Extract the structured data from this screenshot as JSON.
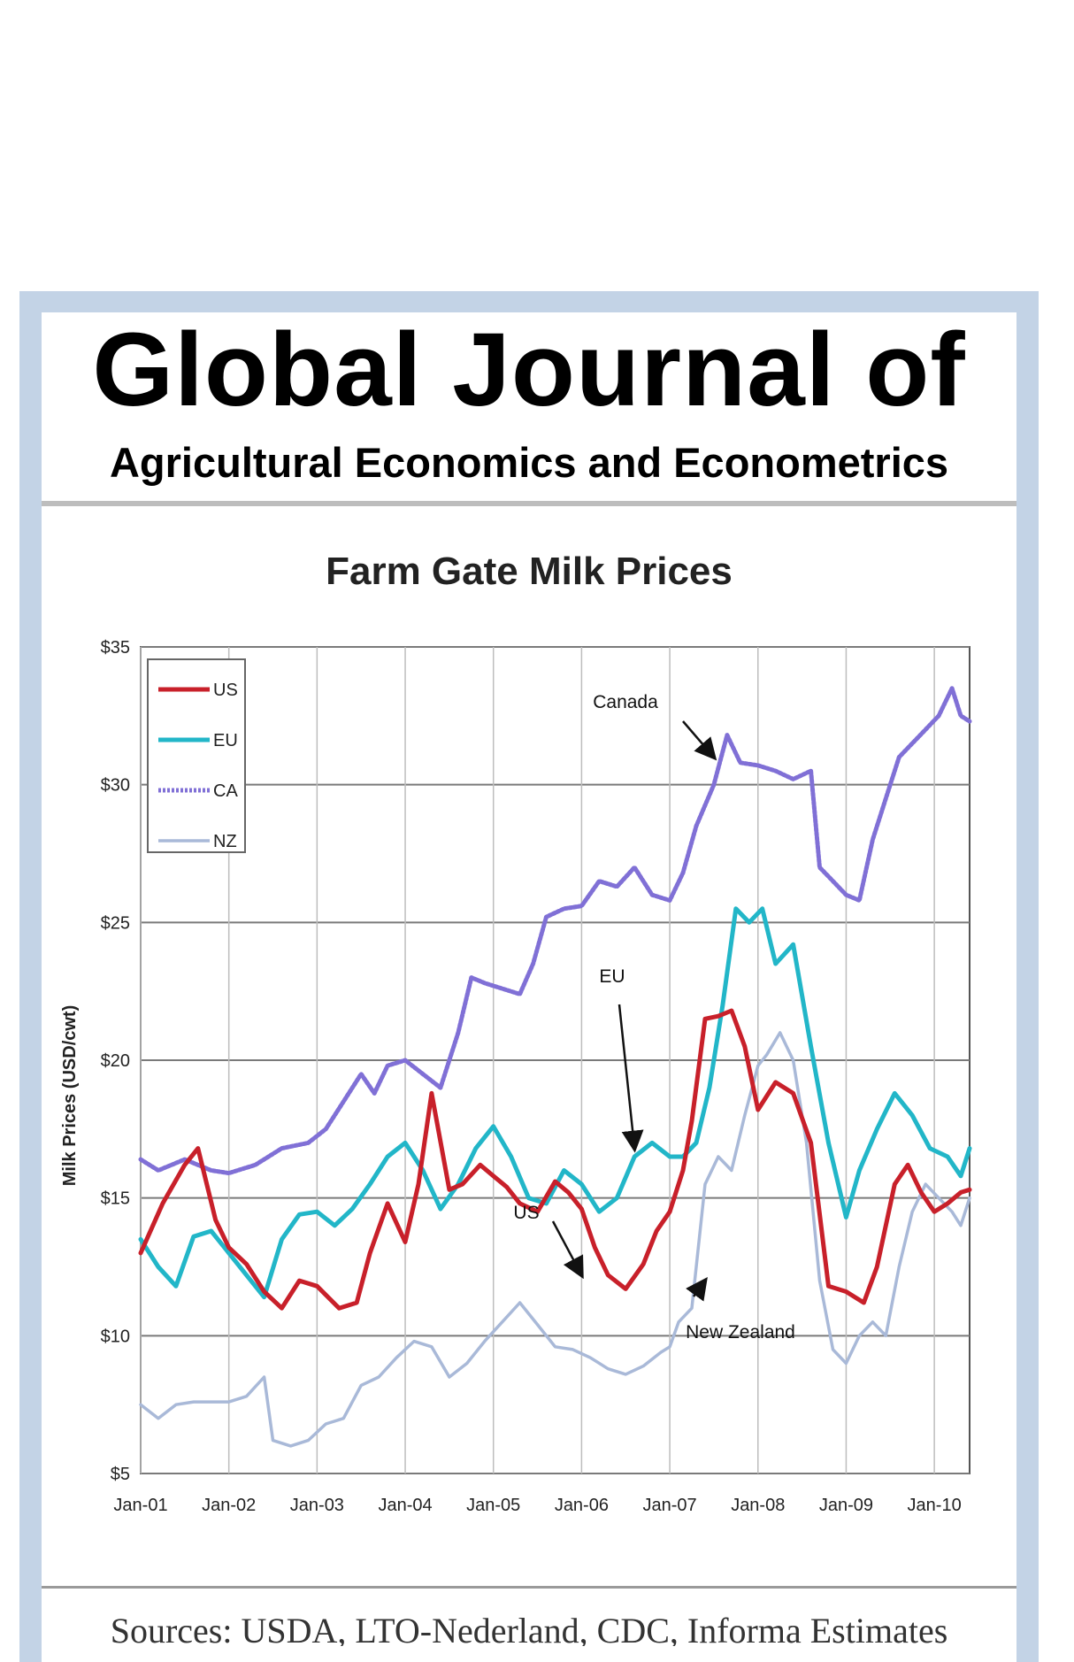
{
  "journal": {
    "title_line1": "Global Journal of",
    "title_line2": "Agricultural Economics and Econometrics"
  },
  "footer": {
    "sources": "Sources: USDA, LTO-Nederland, CDC, Informa Estimates"
  },
  "colors": {
    "frame": "#c3d3e6",
    "US": "#c8202a",
    "EU": "#22b6c8",
    "CA": "#8070d6",
    "NZ": "#a9b9d8"
  },
  "chart_data": {
    "type": "line",
    "title": "Farm Gate Milk Prices",
    "ylabel": "Milk Prices (USD/cwt)",
    "xlabel": "",
    "ylim": [
      5,
      35
    ],
    "xlim": [
      2001.0,
      2010.4
    ],
    "yticks": [
      5,
      10,
      15,
      20,
      25,
      30,
      35
    ],
    "ytick_labels": [
      "$5",
      "$10",
      "$15",
      "$20",
      "$25",
      "$30",
      "$35"
    ],
    "xticks": [
      2001,
      2002,
      2003,
      2004,
      2005,
      2006,
      2007,
      2008,
      2009,
      2010
    ],
    "xtick_labels": [
      "Jan-01",
      "Jan-02",
      "Jan-03",
      "Jan-04",
      "Jan-05",
      "Jan-06",
      "Jan-07",
      "Jan-08",
      "Jan-09",
      "Jan-10"
    ],
    "grid": true,
    "legend_position": "top-left",
    "series": [
      {
        "name": "US",
        "style": "solid",
        "x": [
          2001.0,
          2001.25,
          2001.5,
          2001.65,
          2001.85,
          2002.0,
          2002.2,
          2002.4,
          2002.6,
          2002.8,
          2003.0,
          2003.25,
          2003.45,
          2003.6,
          2003.8,
          2004.0,
          2004.15,
          2004.3,
          2004.5,
          2004.65,
          2004.85,
          2005.0,
          2005.15,
          2005.3,
          2005.5,
          2005.7,
          2005.85,
          2006.0,
          2006.15,
          2006.3,
          2006.5,
          2006.7,
          2006.85,
          2007.0,
          2007.15,
          2007.25,
          2007.4,
          2007.55,
          2007.7,
          2007.85,
          2008.0,
          2008.2,
          2008.4,
          2008.6,
          2008.8,
          2009.0,
          2009.2,
          2009.35,
          2009.55,
          2009.7,
          2009.85,
          2010.0,
          2010.15,
          2010.3,
          2010.4
        ],
        "values": [
          13.0,
          14.8,
          16.2,
          16.8,
          14.2,
          13.2,
          12.6,
          11.6,
          11.0,
          12.0,
          11.8,
          11.0,
          11.2,
          13.0,
          14.8,
          13.4,
          15.5,
          18.8,
          15.3,
          15.5,
          16.2,
          15.8,
          15.4,
          14.8,
          14.5,
          15.6,
          15.2,
          14.6,
          13.2,
          12.2,
          11.7,
          12.6,
          13.8,
          14.5,
          16.0,
          17.8,
          21.5,
          21.6,
          21.8,
          20.5,
          18.2,
          19.2,
          18.8,
          17.0,
          11.8,
          11.6,
          11.2,
          12.5,
          15.5,
          16.2,
          15.2,
          14.5,
          14.8,
          15.2,
          15.3
        ]
      },
      {
        "name": "EU",
        "style": "solid",
        "x": [
          2001.0,
          2001.2,
          2001.4,
          2001.6,
          2001.8,
          2002.0,
          2002.2,
          2002.4,
          2002.6,
          2002.8,
          2003.0,
          2003.2,
          2003.4,
          2003.6,
          2003.8,
          2004.0,
          2004.2,
          2004.4,
          2004.6,
          2004.8,
          2005.0,
          2005.2,
          2005.4,
          2005.6,
          2005.8,
          2006.0,
          2006.2,
          2006.4,
          2006.6,
          2006.8,
          2007.0,
          2007.15,
          2007.3,
          2007.45,
          2007.6,
          2007.75,
          2007.9,
          2008.05,
          2008.2,
          2008.4,
          2008.6,
          2008.8,
          2009.0,
          2009.15,
          2009.35,
          2009.55,
          2009.75,
          2009.95,
          2010.15,
          2010.3,
          2010.4
        ],
        "values": [
          13.5,
          12.5,
          11.8,
          13.6,
          13.8,
          13.0,
          12.2,
          11.4,
          13.5,
          14.4,
          14.5,
          14.0,
          14.6,
          15.5,
          16.5,
          17.0,
          16.0,
          14.6,
          15.5,
          16.8,
          17.6,
          16.5,
          15.0,
          14.8,
          16.0,
          15.5,
          14.5,
          15.0,
          16.5,
          17.0,
          16.5,
          16.5,
          17.0,
          19.0,
          22.0,
          25.5,
          25.0,
          25.5,
          23.5,
          24.2,
          20.5,
          17.0,
          14.3,
          16.0,
          17.5,
          18.8,
          18.0,
          16.8,
          16.5,
          15.8,
          16.8
        ]
      },
      {
        "name": "CA",
        "style": "dotted",
        "x": [
          2001.0,
          2001.2,
          2001.5,
          2001.8,
          2002.0,
          2002.3,
          2002.6,
          2002.9,
          2003.1,
          2003.3,
          2003.5,
          2003.65,
          2003.8,
          2004.0,
          2004.2,
          2004.4,
          2004.6,
          2004.75,
          2004.9,
          2005.1,
          2005.3,
          2005.45,
          2005.6,
          2005.8,
          2006.0,
          2006.2,
          2006.4,
          2006.6,
          2006.8,
          2007.0,
          2007.15,
          2007.3,
          2007.5,
          2007.65,
          2007.8,
          2008.0,
          2008.2,
          2008.4,
          2008.6,
          2008.7,
          2008.85,
          2009.0,
          2009.15,
          2009.3,
          2009.45,
          2009.6,
          2009.75,
          2009.9,
          2010.05,
          2010.2,
          2010.3,
          2010.4
        ],
        "values": [
          16.4,
          16.0,
          16.4,
          16.0,
          15.9,
          16.2,
          16.8,
          17.0,
          17.5,
          18.5,
          19.5,
          18.8,
          19.8,
          20.0,
          19.5,
          19.0,
          21.0,
          23.0,
          22.8,
          22.6,
          22.4,
          23.5,
          25.2,
          25.5,
          25.6,
          26.5,
          26.3,
          27.0,
          26.0,
          25.8,
          26.8,
          28.5,
          30.0,
          31.8,
          30.8,
          30.7,
          30.5,
          30.2,
          30.5,
          27.0,
          26.5,
          26.0,
          25.8,
          28.0,
          29.5,
          31.0,
          31.5,
          32.0,
          32.5,
          33.5,
          32.5,
          32.3
        ]
      },
      {
        "name": "NZ",
        "style": "solid",
        "x": [
          2001.0,
          2001.2,
          2001.4,
          2001.6,
          2001.8,
          2002.0,
          2002.2,
          2002.4,
          2002.5,
          2002.7,
          2002.9,
          2003.1,
          2003.3,
          2003.5,
          2003.7,
          2003.9,
          2004.1,
          2004.3,
          2004.5,
          2004.7,
          2004.9,
          2005.1,
          2005.3,
          2005.5,
          2005.7,
          2005.9,
          2006.1,
          2006.3,
          2006.5,
          2006.7,
          2006.9,
          2007.0,
          2007.1,
          2007.25,
          2007.4,
          2007.55,
          2007.7,
          2007.85,
          2008.0,
          2008.1,
          2008.25,
          2008.4,
          2008.55,
          2008.7,
          2008.85,
          2009.0,
          2009.15,
          2009.3,
          2009.45,
          2009.6,
          2009.75,
          2009.9,
          2010.05,
          2010.2,
          2010.3,
          2010.4
        ],
        "values": [
          7.5,
          7.0,
          7.5,
          7.6,
          7.6,
          7.6,
          7.8,
          8.5,
          6.2,
          6.0,
          6.2,
          6.8,
          7.0,
          8.2,
          8.5,
          9.2,
          9.8,
          9.6,
          8.5,
          9.0,
          9.8,
          10.5,
          11.2,
          10.4,
          9.6,
          9.5,
          9.2,
          8.8,
          8.6,
          8.9,
          9.4,
          9.6,
          10.5,
          11.0,
          15.5,
          16.5,
          16.0,
          18.0,
          19.8,
          20.2,
          21.0,
          20.0,
          17.0,
          12.0,
          9.5,
          9.0,
          10.0,
          10.5,
          10.0,
          12.5,
          14.5,
          15.5,
          15.0,
          14.5,
          14.0,
          15.0
        ]
      }
    ],
    "annotations": [
      {
        "text": "Canada",
        "series": "CA",
        "x": 2007.5,
        "y": 31.0
      },
      {
        "text": "EU",
        "series": "EU",
        "x": 2006.6,
        "y": 16.8
      },
      {
        "text": "US",
        "series": "US",
        "x": 2006.0,
        "y": 12.2
      },
      {
        "text": "New Zealand",
        "series": "NZ",
        "x": 2007.4,
        "y": 12.0
      }
    ]
  }
}
